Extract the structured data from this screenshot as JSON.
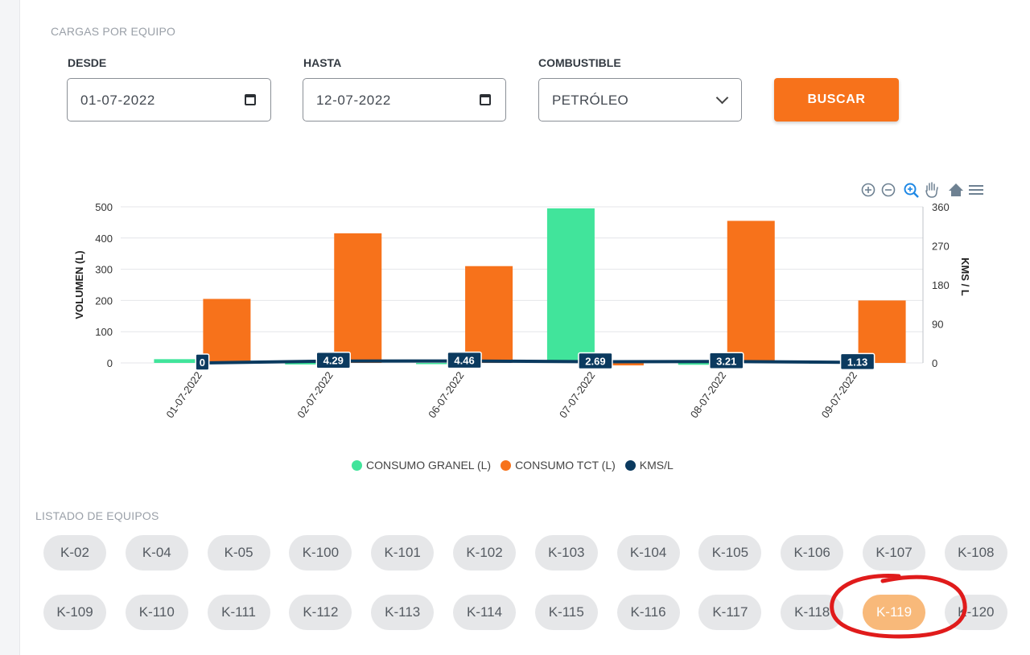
{
  "page": {
    "section_title": "CARGAS POR EQUIPO"
  },
  "filters": {
    "desde_label": "DESDE",
    "desde_value": "01-07-2022",
    "hasta_label": "HASTA",
    "hasta_value": "12-07-2022",
    "combustible_label": "COMBUSTIBLE",
    "combustible_value": "PETRÓLEO",
    "buscar_label": "BUSCAR"
  },
  "toolbar_icons": [
    "zoom-in-icon",
    "zoom-out-icon",
    "selection-zoom-icon",
    "pan-hand-icon",
    "reset-home-icon",
    "menu-icon"
  ],
  "colors": {
    "granel": "#41e49b",
    "tct": "#f7721b",
    "kms": "#0b3a5f",
    "accent": "#f7721b"
  },
  "chart_data": {
    "type": "bar",
    "categories": [
      "01-07-2022",
      "02-07-2022",
      "06-07-2022",
      "07-07-2022",
      "08-07-2022",
      "09-07-2022"
    ],
    "series": [
      {
        "name": "CONSUMO GRANEL (L)",
        "type": "bar",
        "values": [
          12,
          -5,
          -4,
          495,
          -6,
          0
        ]
      },
      {
        "name": "CONSUMO TCT (L)",
        "type": "bar",
        "values": [
          205,
          415,
          310,
          -8,
          455,
          200
        ]
      },
      {
        "name": "KMS/L",
        "type": "line",
        "axis": "right",
        "values": [
          0,
          4.29,
          4.46,
          2.69,
          3.21,
          1.13
        ]
      }
    ],
    "ylabel": "VOLUMEN (L)",
    "y2label": "KMS / L",
    "yticks": [
      0,
      100,
      200,
      300,
      400,
      500
    ],
    "y2ticks": [
      0,
      90,
      180,
      270,
      360
    ],
    "ylim": [
      0,
      500
    ],
    "y2lim": [
      0,
      360
    ],
    "grid": true,
    "legend": "bottom"
  },
  "equipos": {
    "section_title": "LISTADO DE EQUIPOS",
    "row1": [
      "K-02",
      "K-04",
      "K-05",
      "K-100",
      "K-101",
      "K-102",
      "K-103",
      "K-104",
      "K-105",
      "K-106",
      "K-107",
      "K-108"
    ],
    "row2": [
      "K-109",
      "K-110",
      "K-111",
      "K-112",
      "K-113",
      "K-114",
      "K-115",
      "K-116",
      "K-117",
      "K-118",
      "K-119",
      "K-120"
    ],
    "selected": "K-119"
  }
}
